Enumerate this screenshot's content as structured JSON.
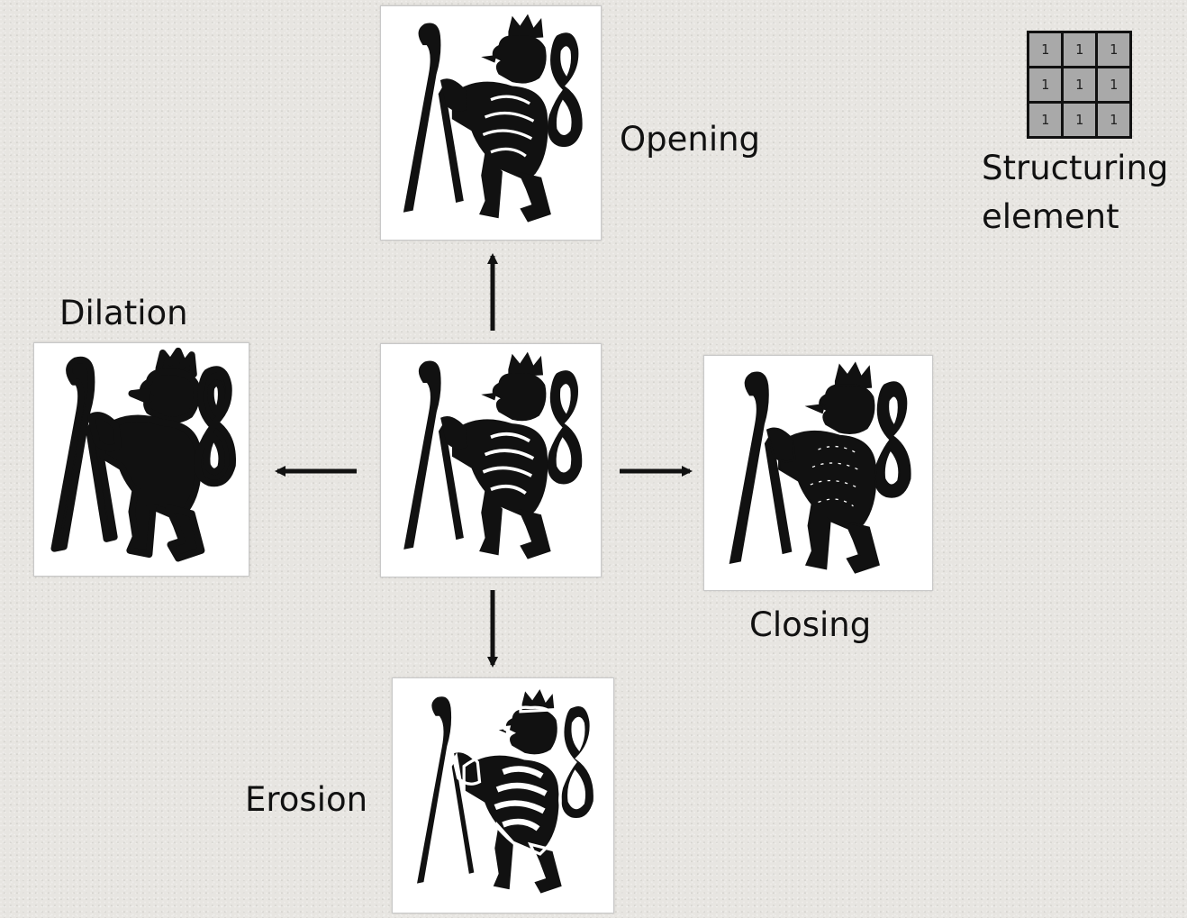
{
  "labels": {
    "opening": "Opening",
    "dilation": "Dilation",
    "closing": "Closing",
    "erosion": "Erosion",
    "structuring_line1": "Structuring",
    "structuring_line2": "element"
  },
  "structuring_element": {
    "cells": [
      "1",
      "1",
      "1",
      "1",
      "1",
      "1",
      "1",
      "1",
      "1"
    ]
  },
  "colors": {
    "background": "#e7e5e1",
    "ink": "#111111",
    "cell_fill": "#a9a9a9"
  }
}
